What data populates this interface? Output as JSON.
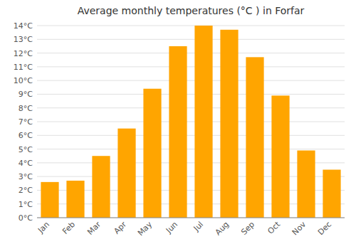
{
  "chart_data": {
    "type": "bar",
    "title": "Average monthly temperatures (°C ) in Forfar",
    "categories": [
      "Jan",
      "Feb",
      "Mar",
      "Apr",
      "May",
      "Jun",
      "Jul",
      "Aug",
      "Sep",
      "Oct",
      "Nov",
      "Dec"
    ],
    "values": [
      2.6,
      2.7,
      4.5,
      6.5,
      9.4,
      12.5,
      14.0,
      13.7,
      11.7,
      8.9,
      4.9,
      3.5
    ],
    "color": "#FFA500",
    "ylim": [
      0,
      14
    ],
    "yticks": [
      {
        "value": 0,
        "label": "0°C"
      },
      {
        "value": 1,
        "label": "1°C"
      },
      {
        "value": 2,
        "label": "2°C"
      },
      {
        "value": 3,
        "label": "3°C"
      },
      {
        "value": 4,
        "label": "4°C"
      },
      {
        "value": 5,
        "label": "5°C"
      },
      {
        "value": 6,
        "label": "6°C"
      },
      {
        "value": 7,
        "label": "7°C"
      },
      {
        "value": 8,
        "label": "8°C"
      },
      {
        "value": 9,
        "label": "9°C"
      },
      {
        "value": 10,
        "label": "10°C"
      },
      {
        "value": 11,
        "label": "11°C"
      },
      {
        "value": 12,
        "label": "12°C"
      },
      {
        "value": 13,
        "label": "13°C"
      },
      {
        "value": 14,
        "label": "14°C"
      }
    ],
    "grid": true
  }
}
